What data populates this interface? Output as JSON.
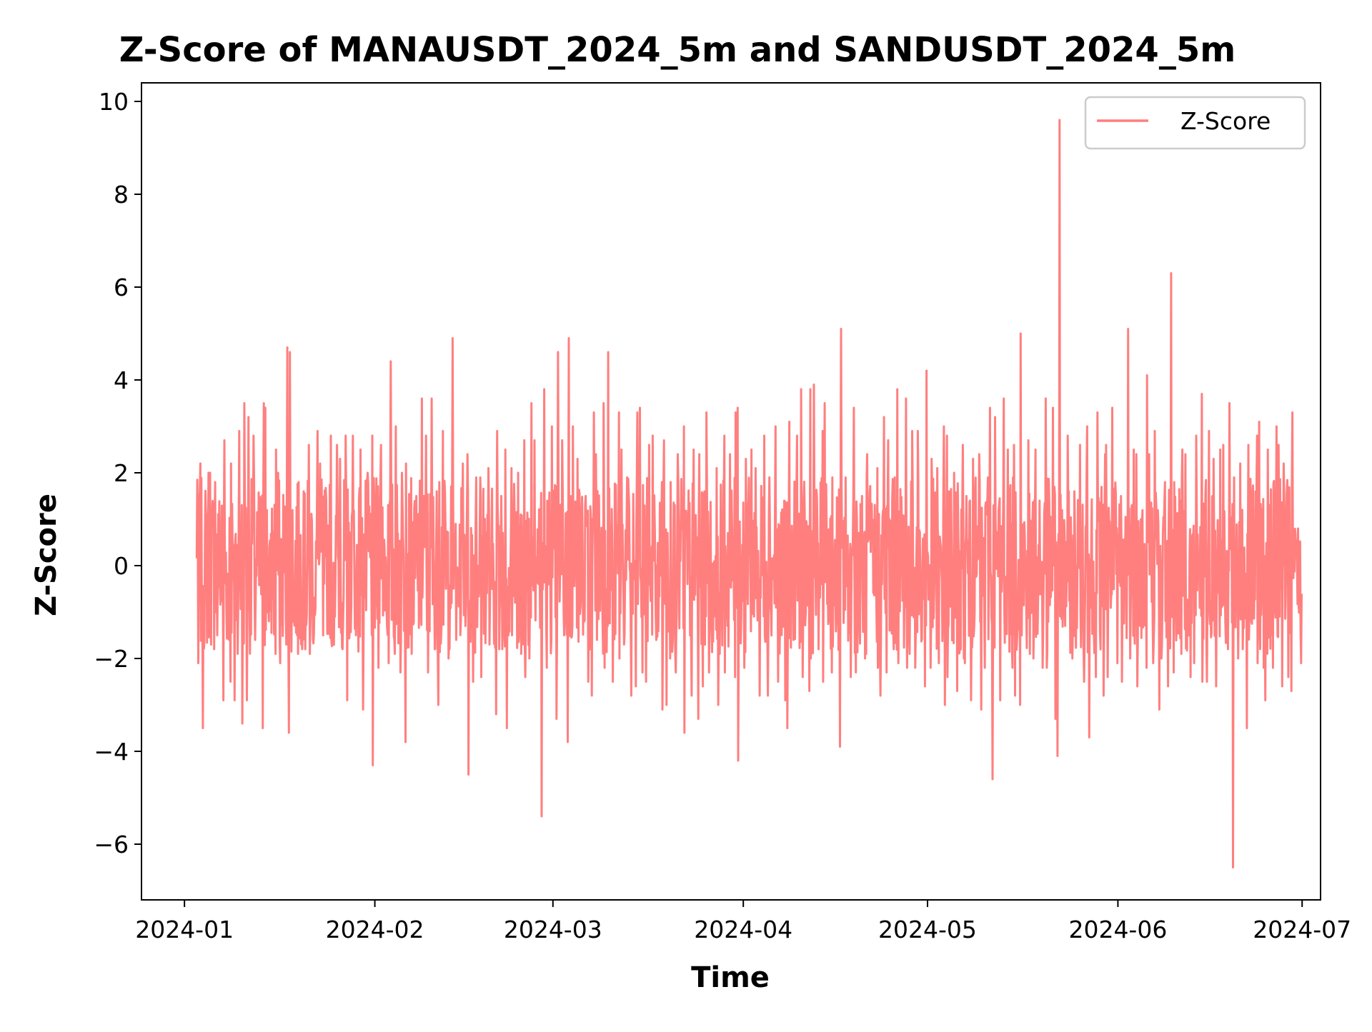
{
  "chart_data": {
    "type": "line",
    "title": "Z-Score of MANAUSDT_2024_5m and SANDUSDT_2024_5m",
    "xlabel": "Time",
    "ylabel": "Z-Score",
    "xlim": [
      "2023-12-25",
      "2024-07-04"
    ],
    "ylim": [
      -7.2,
      10.4
    ],
    "grid": false,
    "legend_position": "top-right",
    "x_ticks": [
      {
        "date": "2024-01-01",
        "label": "2024-01"
      },
      {
        "date": "2024-02-01",
        "label": "2024-02"
      },
      {
        "date": "2024-03-01",
        "label": "2024-03"
      },
      {
        "date": "2024-04-01",
        "label": "2024-04"
      },
      {
        "date": "2024-05-01",
        "label": "2024-05"
      },
      {
        "date": "2024-06-01",
        "label": "2024-06"
      },
      {
        "date": "2024-07-01",
        "label": "2024-07"
      }
    ],
    "y_ticks": [
      {
        "value": -6,
        "label": "−6"
      },
      {
        "value": -4,
        "label": "−4"
      },
      {
        "value": -2,
        "label": "−2"
      },
      {
        "value": 0,
        "label": "0"
      },
      {
        "value": 2,
        "label": "2"
      },
      {
        "value": 4,
        "label": "4"
      },
      {
        "value": 6,
        "label": "6"
      },
      {
        "value": 8,
        "label": "8"
      },
      {
        "value": 10,
        "label": "10"
      }
    ],
    "series": [
      {
        "name": "Z-Score",
        "color": "#ff7f7f",
        "x": [
          "2024-01-03",
          "2024-01-04",
          "2024-01-05",
          "2024-01-06",
          "2024-01-07",
          "2024-01-08",
          "2024-01-09",
          "2024-01-10",
          "2024-01-11",
          "2024-01-12",
          "2024-01-13",
          "2024-01-14",
          "2024-01-15",
          "2024-01-16",
          "2024-01-17",
          "2024-01-18",
          "2024-01-19",
          "2024-01-20",
          "2024-01-21",
          "2024-01-22",
          "2024-01-23",
          "2024-01-24",
          "2024-01-25",
          "2024-01-26",
          "2024-01-27",
          "2024-01-28",
          "2024-01-29",
          "2024-01-30",
          "2024-01-31",
          "2024-02-01",
          "2024-02-02",
          "2024-02-03",
          "2024-02-04",
          "2024-02-05",
          "2024-02-06",
          "2024-02-07",
          "2024-02-08",
          "2024-02-09",
          "2024-02-10",
          "2024-02-11",
          "2024-02-12",
          "2024-02-13",
          "2024-02-14",
          "2024-02-15",
          "2024-02-16",
          "2024-02-17",
          "2024-02-18",
          "2024-02-19",
          "2024-02-20",
          "2024-02-21",
          "2024-02-22",
          "2024-02-23",
          "2024-02-24",
          "2024-02-25",
          "2024-02-26",
          "2024-02-27",
          "2024-02-28",
          "2024-02-29",
          "2024-03-01",
          "2024-03-02",
          "2024-03-03",
          "2024-03-04",
          "2024-03-05",
          "2024-03-06",
          "2024-03-07",
          "2024-03-08",
          "2024-03-09",
          "2024-03-10",
          "2024-03-11",
          "2024-03-12",
          "2024-03-13",
          "2024-03-14",
          "2024-03-15",
          "2024-03-16",
          "2024-03-17",
          "2024-03-18",
          "2024-03-19",
          "2024-03-20",
          "2024-03-21",
          "2024-03-22",
          "2024-03-23",
          "2024-03-24",
          "2024-03-25",
          "2024-03-26",
          "2024-03-27",
          "2024-03-28",
          "2024-03-29",
          "2024-03-30",
          "2024-03-31",
          "2024-04-01",
          "2024-04-02",
          "2024-04-03",
          "2024-04-04",
          "2024-04-05",
          "2024-04-06",
          "2024-04-07",
          "2024-04-08",
          "2024-04-09",
          "2024-04-10",
          "2024-04-11",
          "2024-04-12",
          "2024-04-13",
          "2024-04-14",
          "2024-04-15",
          "2024-04-16",
          "2024-04-17",
          "2024-04-18",
          "2024-04-19",
          "2024-04-20",
          "2024-04-21",
          "2024-04-22",
          "2024-04-23",
          "2024-04-24",
          "2024-04-25",
          "2024-04-26",
          "2024-04-27",
          "2024-04-28",
          "2024-04-29",
          "2024-04-30",
          "2024-05-01",
          "2024-05-02",
          "2024-05-03",
          "2024-05-04",
          "2024-05-05",
          "2024-05-06",
          "2024-05-07",
          "2024-05-08",
          "2024-05-09",
          "2024-05-10",
          "2024-05-11",
          "2024-05-12",
          "2024-05-13",
          "2024-05-14",
          "2024-05-15",
          "2024-05-16",
          "2024-05-17",
          "2024-05-18",
          "2024-05-19",
          "2024-05-20",
          "2024-05-21",
          "2024-05-22",
          "2024-05-23",
          "2024-05-24",
          "2024-05-25",
          "2024-05-26",
          "2024-05-27",
          "2024-05-28",
          "2024-05-29",
          "2024-05-30",
          "2024-05-31",
          "2024-06-01",
          "2024-06-02",
          "2024-06-03",
          "2024-06-04",
          "2024-06-05",
          "2024-06-06",
          "2024-06-07",
          "2024-06-08",
          "2024-06-09",
          "2024-06-10",
          "2024-06-11",
          "2024-06-12",
          "2024-06-13",
          "2024-06-14",
          "2024-06-15",
          "2024-06-16",
          "2024-06-17",
          "2024-06-18",
          "2024-06-19",
          "2024-06-20",
          "2024-06-21",
          "2024-06-22",
          "2024-06-23",
          "2024-06-24",
          "2024-06-25",
          "2024-06-26",
          "2024-06-27",
          "2024-06-28",
          "2024-06-29",
          "2024-06-30"
        ],
        "high": [
          2.2,
          2.0,
          2.0,
          1.8,
          2.7,
          2.2,
          2.9,
          3.5,
          3.2,
          2.8,
          3.5,
          3.4,
          2.5,
          2.0,
          4.7,
          4.6,
          1.8,
          1.6,
          2.6,
          2.9,
          2.2,
          2.8,
          2.6,
          2.3,
          2.8,
          2.8,
          2.5,
          2.0,
          2.8,
          1.9,
          2.6,
          4.4,
          3.0,
          2.0,
          2.2,
          1.5,
          3.6,
          2.8,
          3.6,
          1.8,
          2.9,
          4.9,
          0.9,
          2.2,
          2.4,
          1.9,
          1.9,
          2.1,
          2.9,
          1.5,
          2.5,
          2.1,
          2.0,
          2.7,
          3.5,
          2.7,
          3.8,
          3.0,
          4.6,
          2.7,
          4.9,
          3.0,
          2.3,
          1.5,
          3.3,
          2.4,
          3.5,
          4.6,
          3.3,
          2.5,
          1.9,
          3.3,
          3.4,
          2.6,
          2.8,
          1.8,
          2.7,
          1.8,
          2.4,
          3.0,
          2.5,
          2.4,
          1.6,
          3.3,
          2.1,
          2.8,
          2.4,
          3.3,
          3.4,
          2.3,
          2.5,
          2.1,
          2.8,
          1.9,
          3.0,
          1.4,
          3.1,
          2.8,
          3.8,
          3.8,
          3.9,
          2.9,
          3.5,
          1.9,
          5.1,
          1.9,
          1.5,
          3.4,
          1.5,
          2.4,
          2.1,
          3.2,
          2.7,
          1.9,
          3.8,
          3.6,
          2.9,
          2.9,
          4.2,
          2.3,
          2.1,
          3.0,
          2.8,
          2.0,
          2.6,
          1.5,
          2.3,
          2.4,
          1.9,
          3.4,
          3.2,
          3.6,
          2.5,
          2.6,
          5.0,
          2.7,
          2.5,
          1.4,
          3.6,
          3.4,
          9.6,
          2.8,
          1.6,
          2.6,
          2.1,
          3.0,
          3.3,
          2.4,
          2.6,
          3.4,
          1.5,
          5.1,
          2.5,
          2.4,
          4.1,
          2.4,
          2.9,
          1.8,
          6.3,
          1.8,
          2.5,
          2.4,
          2.8,
          3.7,
          2.9,
          2.3,
          2.5,
          2.6,
          3.5,
          2.2,
          1.2,
          2.6,
          2.8,
          3.1,
          2.5,
          3.0,
          2.6,
          2.2,
          3.3,
          0.8
        ],
        "low": [
          -2.1,
          -3.5,
          -1.8,
          -1.5,
          -2.9,
          -2.5,
          -2.9,
          -3.4,
          -2.9,
          -1.6,
          -3.5,
          -2.2,
          -1.9,
          -2.1,
          -1.7,
          -3.6,
          -1.9,
          -1.8,
          -1.9,
          -3.3,
          -1.5,
          -1.6,
          -2.0,
          -1.8,
          -2.9,
          -1.5,
          -2.5,
          -3.1,
          -4.3,
          -2.2,
          -1.5,
          -2.1,
          -1.9,
          -2.3,
          -3.8,
          -1.9,
          -3.5,
          -2.3,
          -1.8,
          -3.0,
          -2.0,
          -2.0,
          -1.6,
          -1.3,
          -4.5,
          -2.5,
          -2.4,
          -1.7,
          -3.2,
          -1.8,
          -3.5,
          -1.5,
          -1.9,
          -2.4,
          -2.0,
          -4.2,
          -5.4,
          -2.2,
          -3.3,
          -1.5,
          -3.8,
          -2.0,
          -1.8,
          -2.5,
          -2.8,
          -1.6,
          -2.2,
          -2.5,
          -2.0,
          -1.7,
          -2.8,
          -2.6,
          -2.3,
          -2.5,
          -1.6,
          -3.1,
          -3.0,
          -2.0,
          -2.3,
          -3.6,
          -2.8,
          -3.3,
          -2.6,
          -2.3,
          -3.0,
          -2.0,
          -2.3,
          -2.4,
          -4.2,
          -2.2,
          -2.0,
          -2.8,
          -3.1,
          -2.8,
          -2.5,
          -2.9,
          -3.5,
          -1.6,
          -2.4,
          -2.7,
          -2.0,
          -1.8,
          -2.5,
          -2.3,
          -3.9,
          -3.5,
          -2.4,
          -2.3,
          -2.0,
          -1.9,
          -2.2,
          -2.8,
          -2.3,
          -1.8,
          -2.1,
          -2.2,
          -1.9,
          -2.2,
          -2.6,
          -2.2,
          -2.1,
          -3.0,
          -2.4,
          -2.7,
          -2.0,
          -2.1,
          -2.9,
          -3.1,
          -2.2,
          -4.6,
          -2.9,
          -1.8,
          -2.2,
          -2.8,
          -3.0,
          -1.9,
          -2.0,
          -2.2,
          -2.2,
          -3.3,
          -4.1,
          -2.2,
          -2.0,
          -3.4,
          -2.5,
          -3.7,
          -2.4,
          -2.8,
          -2.4,
          -2.1,
          -2.5,
          -2.7,
          -2.0,
          -2.6,
          -2.2,
          -2.1,
          -3.1,
          -2.0,
          -2.6,
          -2.3,
          -1.9,
          -2.4,
          -2.1,
          -2.5,
          -2.5,
          -2.3,
          -2.6,
          -1.8,
          -6.5,
          -2.0,
          -1.8,
          -3.5,
          -2.1,
          -2.2,
          -2.9,
          -2.2,
          -2.6,
          -2.4,
          -2.7,
          -2.1
        ]
      }
    ]
  }
}
